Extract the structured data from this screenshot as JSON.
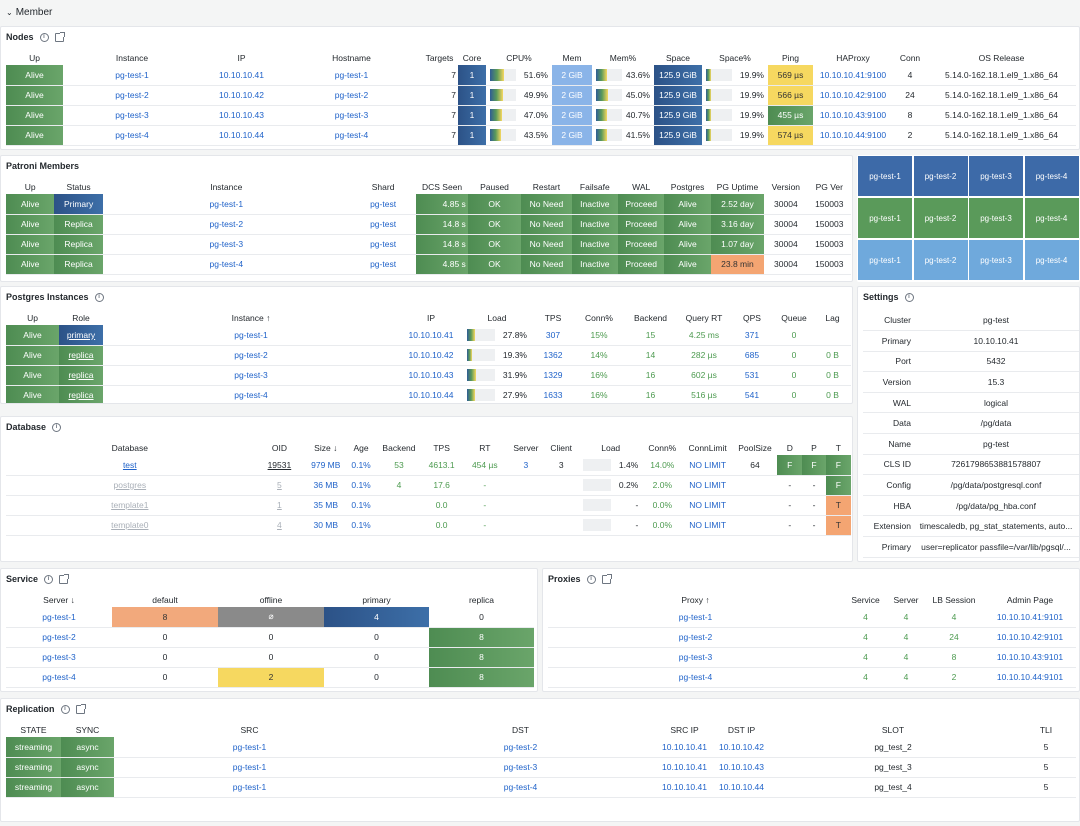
{
  "header": {
    "collapse_icon": "chevron-down-icon",
    "title": "Member"
  },
  "nodes": {
    "title": "Nodes",
    "columns": [
      "Up",
      "Instance",
      "IP",
      "Hostname",
      "Targets",
      "Core",
      "CPU%",
      "Mem",
      "Mem%",
      "Space",
      "Space%",
      "Ping",
      "HAProxy",
      "Conn",
      "OS Release"
    ],
    "rows": [
      {
        "up": "Alive",
        "instance": "pg-test-1",
        "ip": "10.10.10.41",
        "hostname": "pg-test-1",
        "targets": "7",
        "core": "1",
        "cpu": "51.6%",
        "cpu_frac": 0.52,
        "mem": "2 GiB",
        "memp": "43.6%",
        "memp_frac": 0.44,
        "space": "125.9 GiB",
        "spacep": "19.9%",
        "spacep_frac": 0.2,
        "ping": "569 µs",
        "ping_color": "yellow",
        "haproxy": "10.10.10.41:9100",
        "conn": "4",
        "os": "5.14.0-162.18.1.el9_1.x86_64"
      },
      {
        "up": "Alive",
        "instance": "pg-test-2",
        "ip": "10.10.10.42",
        "hostname": "pg-test-2",
        "targets": "7",
        "core": "1",
        "cpu": "49.9%",
        "cpu_frac": 0.5,
        "mem": "2 GiB",
        "memp": "45.0%",
        "memp_frac": 0.45,
        "space": "125.9 GiB",
        "spacep": "19.9%",
        "spacep_frac": 0.2,
        "ping": "566 µs",
        "ping_color": "yellow",
        "haproxy": "10.10.10.42:9100",
        "conn": "24",
        "os": "5.14.0-162.18.1.el9_1.x86_64"
      },
      {
        "up": "Alive",
        "instance": "pg-test-3",
        "ip": "10.10.10.43",
        "hostname": "pg-test-3",
        "targets": "7",
        "core": "1",
        "cpu": "47.0%",
        "cpu_frac": 0.47,
        "mem": "2 GiB",
        "memp": "40.7%",
        "memp_frac": 0.41,
        "space": "125.9 GiB",
        "spacep": "19.9%",
        "spacep_frac": 0.2,
        "ping": "455 µs",
        "ping_color": "green",
        "haproxy": "10.10.10.43:9100",
        "conn": "8",
        "os": "5.14.0-162.18.1.el9_1.x86_64"
      },
      {
        "up": "Alive",
        "instance": "pg-test-4",
        "ip": "10.10.10.44",
        "hostname": "pg-test-4",
        "targets": "7",
        "core": "1",
        "cpu": "43.5%",
        "cpu_frac": 0.44,
        "mem": "2 GiB",
        "memp": "41.5%",
        "memp_frac": 0.42,
        "space": "125.9 GiB",
        "spacep": "19.9%",
        "spacep_frac": 0.2,
        "ping": "574 µs",
        "ping_color": "yellow",
        "haproxy": "10.10.10.44:9100",
        "conn": "2",
        "os": "5.14.0-162.18.1.el9_1.x86_64"
      }
    ]
  },
  "patroni": {
    "title": "Patroni Members",
    "columns": [
      "Up",
      "Status",
      "Instance",
      "Shard",
      "DCS Seen",
      "Paused",
      "Restart",
      "Failsafe",
      "WAL",
      "Postgres",
      "PG Uptime",
      "Version",
      "PG Ver"
    ],
    "rows": [
      {
        "up": "Alive",
        "status": "Primary",
        "instance": "pg-test-1",
        "shard": "pg-test",
        "dcs": "4.85 s",
        "paused": "OK",
        "restart": "No Need",
        "failsafe": "Inactive",
        "wal": "Proceed",
        "postgres": "Alive",
        "uptime": "2.52 day",
        "uptime_color": "green",
        "version": "30004",
        "pgver": "150003"
      },
      {
        "up": "Alive",
        "status": "Replica",
        "instance": "pg-test-2",
        "shard": "pg-test",
        "dcs": "14.8 s",
        "paused": "OK",
        "restart": "No Need",
        "failsafe": "Inactive",
        "wal": "Proceed",
        "postgres": "Alive",
        "uptime": "3.16 day",
        "uptime_color": "green",
        "version": "30004",
        "pgver": "150003"
      },
      {
        "up": "Alive",
        "status": "Replica",
        "instance": "pg-test-3",
        "shard": "pg-test",
        "dcs": "14.8 s",
        "paused": "OK",
        "restart": "No Need",
        "failsafe": "Inactive",
        "wal": "Proceed",
        "postgres": "Alive",
        "uptime": "1.07 day",
        "uptime_color": "green",
        "version": "30004",
        "pgver": "150003"
      },
      {
        "up": "Alive",
        "status": "Replica",
        "instance": "pg-test-4",
        "shard": "pg-test",
        "dcs": "4.85 s",
        "paused": "OK",
        "restart": "No Need",
        "failsafe": "Inactive",
        "wal": "Proceed",
        "postgres": "Alive",
        "uptime": "23.8 min",
        "uptime_color": "orange",
        "version": "30004",
        "pgver": "150003"
      }
    ]
  },
  "tiles": {
    "rows": [
      {
        "color": "#3d6aa8",
        "items": [
          "pg-test-1",
          "pg-test-2",
          "pg-test-3",
          "pg-test-4"
        ]
      },
      {
        "color": "#5a9a5a",
        "items": [
          "pg-test-1",
          "pg-test-2",
          "pg-test-3",
          "pg-test-4"
        ]
      },
      {
        "color": "#6fa9dc",
        "items": [
          "pg-test-1",
          "pg-test-2",
          "pg-test-3",
          "pg-test-4"
        ]
      }
    ]
  },
  "pginst": {
    "title": "Postgres Instances",
    "columns": [
      "Up",
      "Role",
      "Instance ↑",
      "IP",
      "Load",
      "TPS",
      "Conn%",
      "Backend",
      "Query RT",
      "QPS",
      "Queue",
      "Lag"
    ],
    "rows": [
      {
        "up": "Alive",
        "role": "primary",
        "instance": "pg-test-1",
        "ip": "10.10.10.41",
        "load": "27.8%",
        "load_frac": 0.28,
        "tps": "307",
        "conn": "15%",
        "backend": "15",
        "qrt": "4.25 ms",
        "qps": "371",
        "queue": "0",
        "lag": ""
      },
      {
        "up": "Alive",
        "role": "replica",
        "instance": "pg-test-2",
        "ip": "10.10.10.42",
        "load": "19.3%",
        "load_frac": 0.19,
        "tps": "1362",
        "conn": "14%",
        "backend": "14",
        "qrt": "282 µs",
        "qps": "685",
        "queue": "0",
        "lag": "0 B"
      },
      {
        "up": "Alive",
        "role": "replica",
        "instance": "pg-test-3",
        "ip": "10.10.10.43",
        "load": "31.9%",
        "load_frac": 0.32,
        "tps": "1329",
        "conn": "16%",
        "backend": "16",
        "qrt": "602 µs",
        "qps": "531",
        "queue": "0",
        "lag": "0 B"
      },
      {
        "up": "Alive",
        "role": "replica",
        "instance": "pg-test-4",
        "ip": "10.10.10.44",
        "load": "27.9%",
        "load_frac": 0.28,
        "tps": "1633",
        "conn": "16%",
        "backend": "16",
        "qrt": "516 µs",
        "qps": "541",
        "queue": "0",
        "lag": "0 B"
      }
    ]
  },
  "settings": {
    "title": "Settings",
    "rows": [
      [
        "Cluster",
        "pg-test"
      ],
      [
        "Primary",
        "10.10.10.41"
      ],
      [
        "Port",
        "5432"
      ],
      [
        "Version",
        "15.3"
      ],
      [
        "WAL",
        "logical"
      ],
      [
        "Data",
        "/pg/data"
      ],
      [
        "Name",
        "pg-test"
      ],
      [
        "CLS ID",
        "7261798653881578807"
      ],
      [
        "Config",
        "/pg/data/postgresql.conf"
      ],
      [
        "HBA",
        "/pg/data/pg_hba.conf"
      ],
      [
        "Extension",
        "timescaledb, pg_stat_statements, auto..."
      ],
      [
        "Primary",
        "user=replicator passfile=/var/lib/pgsql/..."
      ]
    ]
  },
  "database": {
    "title": "Database",
    "columns": [
      "Database",
      "OID",
      "Size ↓",
      "Age",
      "Backend",
      "TPS",
      "RT",
      "Server",
      "Client",
      "Load",
      "Conn%",
      "ConnLimit",
      "PoolSize",
      "D",
      "P",
      "T"
    ],
    "rows": [
      {
        "db": "test",
        "oid": "19531",
        "size": "979 MB",
        "age": "0.1%",
        "backend": "53",
        "tps": "4613.1",
        "rt": "454 µs",
        "server": "3",
        "client": "3",
        "load": "1.4%",
        "load_frac": 0.014,
        "conn": "14.0%",
        "connlimit": "NO LIMIT",
        "pool": "64",
        "d": "F",
        "p": "F",
        "t": "F",
        "dcolor": "green",
        "pcolor": "green",
        "tcolor": "green",
        "active": true
      },
      {
        "db": "postgres",
        "oid": "5",
        "size": "36 MB",
        "age": "0.1%",
        "backend": "4",
        "tps": "17.6",
        "rt": "-",
        "server": "",
        "client": "",
        "load": "0.2%",
        "load_frac": 0.002,
        "conn": "2.0%",
        "connlimit": "NO LIMIT",
        "pool": "",
        "d": "-",
        "p": "-",
        "t": "F",
        "dcolor": "",
        "pcolor": "",
        "tcolor": "green",
        "active": false
      },
      {
        "db": "template1",
        "oid": "1",
        "size": "35 MB",
        "age": "0.1%",
        "backend": "",
        "tps": "0.0",
        "rt": "-",
        "server": "",
        "client": "",
        "load": "-",
        "load_frac": 0,
        "conn": "0.0%",
        "connlimit": "NO LIMIT",
        "pool": "",
        "d": "-",
        "p": "-",
        "t": "T",
        "dcolor": "",
        "pcolor": "",
        "tcolor": "orange",
        "active": false
      },
      {
        "db": "template0",
        "oid": "4",
        "size": "30 MB",
        "age": "0.1%",
        "backend": "",
        "tps": "0.0",
        "rt": "-",
        "server": "",
        "client": "",
        "load": "-",
        "load_frac": 0,
        "conn": "0.0%",
        "connlimit": "NO LIMIT",
        "pool": "",
        "d": "-",
        "p": "-",
        "t": "T",
        "dcolor": "",
        "pcolor": "",
        "tcolor": "orange",
        "active": false
      }
    ]
  },
  "service": {
    "title": "Service",
    "columns": [
      "Server ↓",
      "default",
      "offline",
      "primary",
      "replica"
    ],
    "rows": [
      {
        "server": "pg-test-1",
        "default": "8",
        "default_color": "orange",
        "offline": "⌀",
        "offline_color": "gray",
        "primary": "4",
        "primary_color": "blue",
        "replica": "0",
        "replica_color": ""
      },
      {
        "server": "pg-test-2",
        "default": "0",
        "default_color": "",
        "offline": "0",
        "offline_color": "",
        "primary": "0",
        "primary_color": "",
        "replica": "8",
        "replica_color": "green"
      },
      {
        "server": "pg-test-3",
        "default": "0",
        "default_color": "",
        "offline": "0",
        "offline_color": "",
        "primary": "0",
        "primary_color": "",
        "replica": "8",
        "replica_color": "green"
      },
      {
        "server": "pg-test-4",
        "default": "0",
        "default_color": "",
        "offline": "2",
        "offline_color": "yellow",
        "primary": "0",
        "primary_color": "",
        "replica": "8",
        "replica_color": "green"
      }
    ]
  },
  "proxies": {
    "title": "Proxies",
    "columns": [
      "Proxy ↑",
      "Service",
      "Server",
      "LB Session",
      "Admin Page"
    ],
    "rows": [
      {
        "proxy": "pg-test-1",
        "service": "4",
        "server": "4",
        "lb": "4",
        "admin": "10.10.10.41:9101"
      },
      {
        "proxy": "pg-test-2",
        "service": "4",
        "server": "4",
        "lb": "24",
        "admin": "10.10.10.42:9101"
      },
      {
        "proxy": "pg-test-3",
        "service": "4",
        "server": "4",
        "lb": "8",
        "admin": "10.10.10.43:9101"
      },
      {
        "proxy": "pg-test-4",
        "service": "4",
        "server": "4",
        "lb": "2",
        "admin": "10.10.10.44:9101"
      }
    ]
  },
  "replication": {
    "title": "Replication",
    "columns": [
      "STATE",
      "SYNC",
      "SRC",
      "DST",
      "SRC IP",
      "DST IP",
      "SLOT",
      "TLI"
    ],
    "rows": [
      {
        "state": "streaming",
        "sync": "async",
        "src": "pg-test-1",
        "dst": "pg-test-2",
        "srcip": "10.10.10.41",
        "dstip": "10.10.10.42",
        "slot": "pg_test_2",
        "tli": "5"
      },
      {
        "state": "streaming",
        "sync": "async",
        "src": "pg-test-1",
        "dst": "pg-test-3",
        "srcip": "10.10.10.41",
        "dstip": "10.10.10.43",
        "slot": "pg_test_3",
        "tli": "5"
      },
      {
        "state": "streaming",
        "sync": "async",
        "src": "pg-test-1",
        "dst": "pg-test-4",
        "srcip": "10.10.10.41",
        "dstip": "10.10.10.44",
        "slot": "pg_test_4",
        "tli": "5"
      }
    ]
  }
}
